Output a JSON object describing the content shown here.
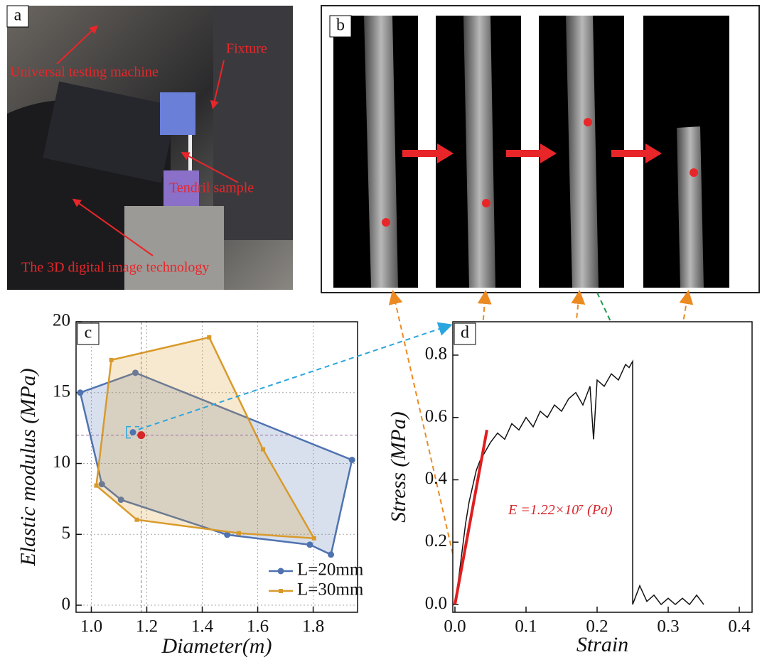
{
  "panels": {
    "a": {
      "label": "a",
      "annotations": [
        "Fixture",
        "Universal testing machine",
        "Tendril sample",
        "The 3D digital image technology"
      ]
    },
    "b": {
      "label": "b"
    }
  },
  "chart_data": [
    {
      "type": "polygon",
      "panel_label": "c",
      "xlabel": "Diameter(m)",
      "ylabel": "Elastic modulus (MPa)",
      "xlim": [
        0.945,
        1.96
      ],
      "ylim": [
        -0.5,
        20
      ],
      "xticks": [
        {
          "value": 1,
          "label": "1.0"
        },
        1.2,
        1.4,
        1.6,
        1.8
      ],
      "yticks": [
        0,
        5,
        10,
        15,
        20
      ],
      "grid": true,
      "legend": "lower right",
      "series": [
        {
          "name": "L=20mm",
          "color": "#4f73b0",
          "marker": "circle",
          "x": [
            0.96,
            1.159,
            1.94,
            1.864,
            1.788,
            1.49,
            1.107,
            1.038
          ],
          "values": [
            15.0,
            16.4,
            10.25,
            3.57,
            4.27,
            4.97,
            7.44,
            8.54
          ]
        },
        {
          "name": "L=30mm",
          "color": "#d99a2b",
          "marker": "square",
          "x": [
            1.072,
            1.425,
            1.619,
            1.803,
            1.532,
            1.164,
            1.018
          ],
          "values": [
            17.3,
            18.9,
            11.0,
            4.72,
            5.08,
            6.03,
            8.44
          ]
        }
      ],
      "selected": {
        "x": 1.15,
        "y": 12.2,
        "color": "#4f73b0"
      },
      "highlight": {
        "x": 1.18,
        "y": 12,
        "color": "#d62728"
      }
    },
    {
      "type": "line",
      "panel_label": "d",
      "xlabel": "Strain",
      "ylabel": "Stress (MPa)",
      "xlim": [
        -0.003,
        0.418
      ],
      "ylim": [
        -0.025,
        0.907
      ],
      "xticks": [
        {
          "value": 0,
          "label": "0.0"
        },
        0.1,
        0.2,
        0.3,
        0.4
      ],
      "yticks": [
        {
          "value": 0,
          "label": "0.0"
        },
        0.2,
        0.4,
        0.6,
        0.8
      ],
      "grid": false,
      "annotation": "E =1.22×10⁷ (Pa)",
      "series": [
        {
          "color": "#111111",
          "x": [
            0,
            0.005,
            0.01,
            0.015,
            0.02,
            0.025,
            0.03,
            0.035,
            0.04,
            0.05,
            0.06,
            0.07,
            0.08,
            0.09,
            0.1,
            0.11,
            0.12,
            0.13,
            0.14,
            0.15,
            0.16,
            0.17,
            0.18,
            0.19,
            0.195,
            0.2,
            0.21,
            0.22,
            0.23,
            0.24,
            0.245,
            0.25,
            0.25,
            0.26,
            0.27,
            0.28,
            0.29,
            0.3,
            0.31,
            0.32,
            0.33,
            0.34,
            0.35
          ],
          "values": [
            0,
            0.08,
            0.17,
            0.26,
            0.33,
            0.38,
            0.43,
            0.46,
            0.48,
            0.52,
            0.55,
            0.53,
            0.58,
            0.56,
            0.6,
            0.57,
            0.62,
            0.6,
            0.64,
            0.62,
            0.66,
            0.68,
            0.64,
            0.7,
            0.53,
            0.72,
            0.7,
            0.74,
            0.72,
            0.77,
            0.76,
            0.78,
            0,
            0.06,
            0.01,
            0.03,
            0,
            0.02,
            0,
            0.02,
            0,
            0.03,
            0
          ]
        },
        {
          "color": "#e01e1e",
          "x": [
            0,
            0.045
          ],
          "values": [
            0,
            0.56
          ]
        }
      ]
    }
  ]
}
